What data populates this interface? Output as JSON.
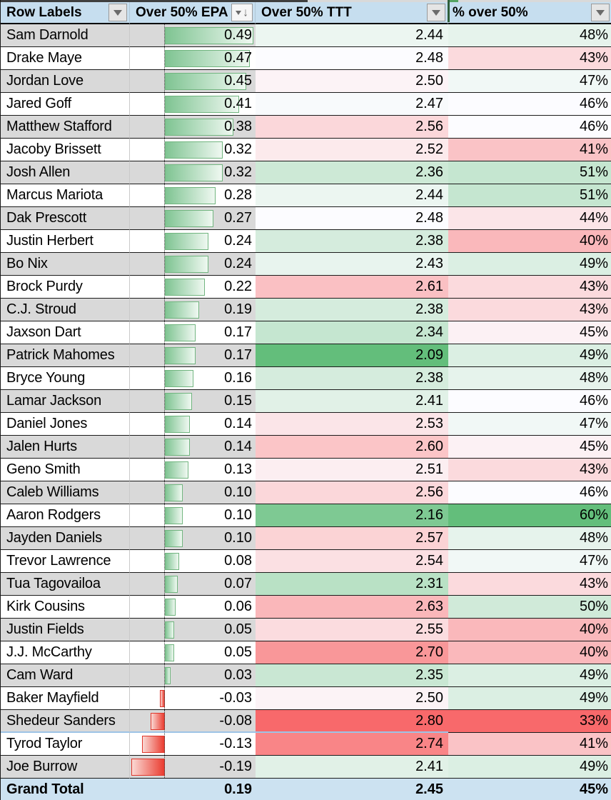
{
  "table": {
    "columns": [
      {
        "label": "Row Labels",
        "filter": "dropdown"
      },
      {
        "label": "Over 50% EPA",
        "filter": "sort-descending-dropdown"
      },
      {
        "label": "Over 50% TTT",
        "filter": "dropdown"
      },
      {
        "label": "% over 50%",
        "filter": "dropdown"
      }
    ],
    "rows": [
      {
        "name": "Sam Darnold",
        "epa": 0.49,
        "ttt": 2.44,
        "pct": 48
      },
      {
        "name": "Drake Maye",
        "epa": 0.47,
        "ttt": 2.48,
        "pct": 43
      },
      {
        "name": "Jordan Love",
        "epa": 0.45,
        "ttt": 2.5,
        "pct": 47
      },
      {
        "name": "Jared Goff",
        "epa": 0.41,
        "ttt": 2.47,
        "pct": 46
      },
      {
        "name": "Matthew Stafford",
        "epa": 0.38,
        "ttt": 2.56,
        "pct": 46
      },
      {
        "name": "Jacoby Brissett",
        "epa": 0.32,
        "ttt": 2.52,
        "pct": 41
      },
      {
        "name": "Josh Allen",
        "epa": 0.32,
        "ttt": 2.36,
        "pct": 51
      },
      {
        "name": "Marcus Mariota",
        "epa": 0.28,
        "ttt": 2.44,
        "pct": 51
      },
      {
        "name": "Dak Prescott",
        "epa": 0.27,
        "ttt": 2.48,
        "pct": 44
      },
      {
        "name": "Justin Herbert",
        "epa": 0.24,
        "ttt": 2.38,
        "pct": 40
      },
      {
        "name": "Bo Nix",
        "epa": 0.24,
        "ttt": 2.43,
        "pct": 49
      },
      {
        "name": "Brock Purdy",
        "epa": 0.22,
        "ttt": 2.61,
        "pct": 43
      },
      {
        "name": "C.J. Stroud",
        "epa": 0.19,
        "ttt": 2.38,
        "pct": 43
      },
      {
        "name": "Jaxson Dart",
        "epa": 0.17,
        "ttt": 2.34,
        "pct": 45
      },
      {
        "name": "Patrick Mahomes",
        "epa": 0.17,
        "ttt": 2.09,
        "pct": 49
      },
      {
        "name": "Bryce Young",
        "epa": 0.16,
        "ttt": 2.38,
        "pct": 48
      },
      {
        "name": "Lamar Jackson",
        "epa": 0.15,
        "ttt": 2.41,
        "pct": 46
      },
      {
        "name": "Daniel Jones",
        "epa": 0.14,
        "ttt": 2.53,
        "pct": 47
      },
      {
        "name": "Jalen Hurts",
        "epa": 0.14,
        "ttt": 2.6,
        "pct": 45
      },
      {
        "name": "Geno Smith",
        "epa": 0.13,
        "ttt": 2.51,
        "pct": 43
      },
      {
        "name": "Caleb Williams",
        "epa": 0.1,
        "ttt": 2.56,
        "pct": 46
      },
      {
        "name": "Aaron Rodgers",
        "epa": 0.1,
        "ttt": 2.16,
        "pct": 60
      },
      {
        "name": "Jayden Daniels",
        "epa": 0.1,
        "ttt": 2.57,
        "pct": 48
      },
      {
        "name": "Trevor Lawrence",
        "epa": 0.08,
        "ttt": 2.54,
        "pct": 47
      },
      {
        "name": "Tua Tagovailoa",
        "epa": 0.07,
        "ttt": 2.31,
        "pct": 43
      },
      {
        "name": "Kirk Cousins",
        "epa": 0.06,
        "ttt": 2.63,
        "pct": 50
      },
      {
        "name": "Justin Fields",
        "epa": 0.05,
        "ttt": 2.55,
        "pct": 40
      },
      {
        "name": "J.J. McCarthy",
        "epa": 0.05,
        "ttt": 2.7,
        "pct": 40
      },
      {
        "name": "Cam Ward",
        "epa": 0.03,
        "ttt": 2.35,
        "pct": 49
      },
      {
        "name": "Baker Mayfield",
        "epa": -0.03,
        "ttt": 2.5,
        "pct": 49
      },
      {
        "name": "Shedeur Sanders",
        "epa": -0.08,
        "ttt": 2.8,
        "pct": 33
      },
      {
        "name": "Tyrod Taylor",
        "epa": -0.13,
        "ttt": 2.74,
        "pct": 41
      },
      {
        "name": "Joe Burrow",
        "epa": -0.19,
        "ttt": 2.41,
        "pct": 49
      }
    ],
    "grand_total": {
      "label": "Grand Total",
      "epa": 0.19,
      "ttt": 2.45,
      "pct": 45
    }
  },
  "conditional_formatting": {
    "epa_data_bar": {
      "min": -0.19,
      "max": 0.49,
      "axis_fraction": 0.279
    },
    "ttt_color_scale": {
      "min": 2.09,
      "mid": 2.48,
      "max": 2.8,
      "low_is_green": true
    },
    "pct_color_scale": {
      "min": 33,
      "mid": 46,
      "max": 60,
      "low_is_green": false
    }
  },
  "annotations": {
    "blue_divider_after_row": "Shedeur Sanders"
  },
  "colors": {
    "header_bg": "#C6DEEF",
    "grand_total_bg": "#CCE2F1",
    "band_gray": "#D9D9D9",
    "band_white": "#FFFFFF",
    "grid_black": "#1B1B1B",
    "scale_green": "#63BE7B",
    "scale_mid_white": "#FCFCFF",
    "scale_red": "#F8696B",
    "bar_positive_border": "#71B57F",
    "bar_positive_fill_start": "#7FC492",
    "bar_positive_fill_end": "#EFF8F1",
    "bar_negative_border": "#E0362B",
    "bar_negative_fill_start": "#FAD9D4",
    "bar_negative_fill_end": "#EA3C30",
    "blue_divider": "#9DC3E6",
    "header_green_divider": "#2F5E3A",
    "button_bg": "#E5E5E5",
    "button_border": "#9A9A9A",
    "button_glyph": "#6B6B6B",
    "top_strip_dark": "#3F3F3F",
    "top_strip_gray": "#D9D9D9",
    "top_strip_green": "#55A363"
  }
}
